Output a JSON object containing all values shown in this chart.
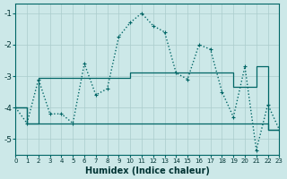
{
  "xlabel": "Humidex (Indice chaleur)",
  "bg_color": "#cce8e8",
  "grid_color": "#aacccc",
  "line_color": "#006666",
  "xlim": [
    0,
    23
  ],
  "ylim": [
    -5.5,
    -0.7
  ],
  "yticks": [
    -5,
    -4,
    -3,
    -2,
    -1
  ],
  "xticks": [
    0,
    1,
    2,
    3,
    4,
    5,
    6,
    7,
    8,
    9,
    10,
    11,
    12,
    13,
    14,
    15,
    16,
    17,
    18,
    19,
    20,
    21,
    22,
    23
  ],
  "series": [
    {
      "x": [
        0,
        1,
        2,
        3,
        4,
        5,
        6,
        7,
        8,
        9,
        10,
        11,
        12,
        13,
        14,
        15,
        16,
        17,
        18,
        19,
        20,
        21,
        22,
        23
      ],
      "y": [
        -4.0,
        -4.5,
        -3.1,
        -4.2,
        -4.2,
        -4.5,
        -2.6,
        -3.6,
        -3.4,
        -1.75,
        -1.3,
        -1.0,
        -1.4,
        -1.6,
        -2.9,
        -3.1,
        -2.0,
        -2.15,
        -3.5,
        -4.3,
        -2.7,
        -5.35,
        -3.9,
        -4.7
      ],
      "linestyle": ":",
      "marker": "+",
      "lw": 1.0
    },
    {
      "x": [
        0,
        1,
        2,
        3,
        4,
        5,
        6,
        7,
        8,
        9,
        10,
        11,
        12,
        13,
        14,
        15,
        16,
        17,
        18,
        19,
        20,
        21,
        22,
        23
      ],
      "y": [
        -4.0,
        -4.5,
        -3.05,
        -3.05,
        -3.05,
        -3.05,
        -3.05,
        -3.05,
        -3.05,
        -3.05,
        -2.9,
        -2.9,
        -2.9,
        -2.9,
        -2.9,
        -2.9,
        -2.9,
        -2.9,
        -2.9,
        -3.35,
        -3.35,
        -2.7,
        -4.7,
        -4.7
      ],
      "linestyle": "-",
      "marker": null,
      "lw": 0.9
    },
    {
      "x": [
        0,
        1,
        2,
        3,
        4,
        5,
        6,
        7,
        8,
        9,
        10,
        11,
        12,
        13,
        14,
        15,
        16,
        17,
        18,
        19,
        20,
        21,
        22,
        23
      ],
      "y": [
        -4.0,
        -4.5,
        -4.5,
        -4.5,
        -4.5,
        -4.5,
        -4.5,
        -4.5,
        -4.5,
        -4.5,
        -4.5,
        -4.5,
        -4.5,
        -4.5,
        -4.5,
        -4.5,
        -4.5,
        -4.5,
        -4.5,
        -4.5,
        -4.5,
        -4.5,
        -4.7,
        -4.7
      ],
      "linestyle": "-",
      "marker": null,
      "lw": 0.9
    }
  ]
}
